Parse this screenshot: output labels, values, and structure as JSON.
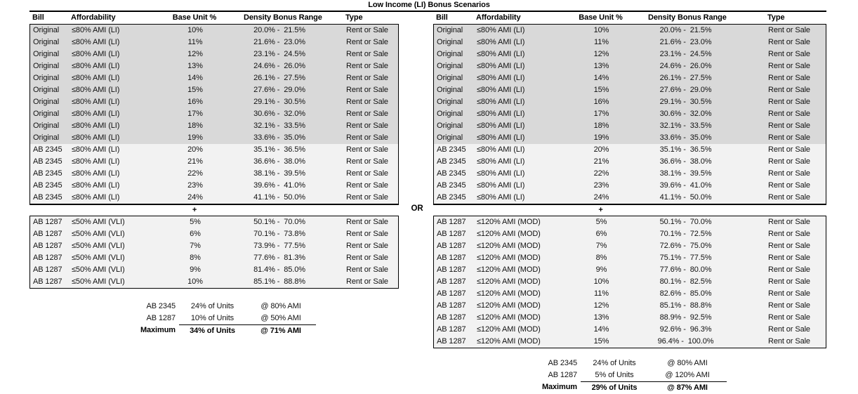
{
  "title": "Low Income (LI) Bonus Scenarios",
  "separators": {
    "plus": "+",
    "or": "OR"
  },
  "colors": {
    "original_row_bg": "#d9d9d9",
    "bill_row_bg": "#f2f2f2",
    "border": "#000000"
  },
  "columns": [
    {
      "key": "bill",
      "label": "Bill"
    },
    {
      "key": "aff",
      "label": "Affordability"
    },
    {
      "key": "base",
      "label": "Base Unit %"
    },
    {
      "key": "range",
      "label": "Density Bonus Range"
    },
    {
      "key": "type",
      "label": "Type"
    }
  ],
  "base_rows": [
    {
      "group": "original",
      "bill": "Original",
      "aff": "≤80% AMI (LI)",
      "base": "10%",
      "range": "20.0% -  21.5%",
      "type": "Rent or Sale"
    },
    {
      "group": "original",
      "bill": "Original",
      "aff": "≤80% AMI (LI)",
      "base": "11%",
      "range": "21.6% -  23.0%",
      "type": "Rent or Sale"
    },
    {
      "group": "original",
      "bill": "Original",
      "aff": "≤80% AMI (LI)",
      "base": "12%",
      "range": "23.1% -  24.5%",
      "type": "Rent or Sale"
    },
    {
      "group": "original",
      "bill": "Original",
      "aff": "≤80% AMI (LI)",
      "base": "13%",
      "range": "24.6% -  26.0%",
      "type": "Rent or Sale"
    },
    {
      "group": "original",
      "bill": "Original",
      "aff": "≤80% AMI (LI)",
      "base": "14%",
      "range": "26.1% -  27.5%",
      "type": "Rent or Sale"
    },
    {
      "group": "original",
      "bill": "Original",
      "aff": "≤80% AMI (LI)",
      "base": "15%",
      "range": "27.6% -  29.0%",
      "type": "Rent or Sale"
    },
    {
      "group": "original",
      "bill": "Original",
      "aff": "≤80% AMI (LI)",
      "base": "16%",
      "range": "29.1% -  30.5%",
      "type": "Rent or Sale"
    },
    {
      "group": "original",
      "bill": "Original",
      "aff": "≤80% AMI (LI)",
      "base": "17%",
      "range": "30.6% -  32.0%",
      "type": "Rent or Sale"
    },
    {
      "group": "original",
      "bill": "Original",
      "aff": "≤80% AMI (LI)",
      "base": "18%",
      "range": "32.1% -  33.5%",
      "type": "Rent or Sale"
    },
    {
      "group": "original",
      "bill": "Original",
      "aff": "≤80% AMI (LI)",
      "base": "19%",
      "range": "33.6% -  35.0%",
      "type": "Rent or Sale"
    },
    {
      "group": "bill",
      "bill": "AB 2345",
      "aff": "≤80% AMI (LI)",
      "base": "20%",
      "range": "35.1% -  36.5%",
      "type": "Rent or Sale"
    },
    {
      "group": "bill",
      "bill": "AB 2345",
      "aff": "≤80% AMI (LI)",
      "base": "21%",
      "range": "36.6% -  38.0%",
      "type": "Rent or Sale"
    },
    {
      "group": "bill",
      "bill": "AB 2345",
      "aff": "≤80% AMI (LI)",
      "base": "22%",
      "range": "38.1% -  39.5%",
      "type": "Rent or Sale"
    },
    {
      "group": "bill",
      "bill": "AB 2345",
      "aff": "≤80% AMI (LI)",
      "base": "23%",
      "range": "39.6% -  41.0%",
      "type": "Rent or Sale"
    },
    {
      "group": "bill",
      "bill": "AB 2345",
      "aff": "≤80% AMI (LI)",
      "base": "24%",
      "range": "41.1% -  50.0%",
      "type": "Rent or Sale"
    }
  ],
  "panels": {
    "left": {
      "sub_rows": [
        {
          "group": "bill",
          "bill": "AB 1287",
          "aff": "≤50% AMI (VLI)",
          "base": "5%",
          "range": "50.1% -  70.0%",
          "type": "Rent or Sale"
        },
        {
          "group": "bill",
          "bill": "AB 1287",
          "aff": "≤50% AMI (VLI)",
          "base": "6%",
          "range": "70.1% -  73.8%",
          "type": "Rent or Sale"
        },
        {
          "group": "bill",
          "bill": "AB 1287",
          "aff": "≤50% AMI (VLI)",
          "base": "7%",
          "range": "73.9% -  77.5%",
          "type": "Rent or Sale"
        },
        {
          "group": "bill",
          "bill": "AB 1287",
          "aff": "≤50% AMI (VLI)",
          "base": "8%",
          "range": "77.6% -  81.3%",
          "type": "Rent or Sale"
        },
        {
          "group": "bill",
          "bill": "AB 1287",
          "aff": "≤50% AMI (VLI)",
          "base": "9%",
          "range": "81.4% -  85.0%",
          "type": "Rent or Sale"
        },
        {
          "group": "bill",
          "bill": "AB 1287",
          "aff": "≤50% AMI (VLI)",
          "base": "10%",
          "range": "85.1% -  88.8%",
          "type": "Rent or Sale"
        }
      ],
      "summary": [
        {
          "label": "AB 2345",
          "units": "24% of Units",
          "ami": "@ 80% AMI",
          "bold": false
        },
        {
          "label": "AB 1287",
          "units": "10% of Units",
          "ami": "@ 50% AMI",
          "bold": false
        },
        {
          "label": "Maximum",
          "units": "34% of Units",
          "ami": "@ 71% AMI",
          "bold": true
        }
      ]
    },
    "right": {
      "sub_rows": [
        {
          "group": "bill",
          "bill": "AB 1287",
          "aff": "≤120% AMI (MOD)",
          "base": "5%",
          "range": "50.1% -  70.0%",
          "type": "Rent or Sale"
        },
        {
          "group": "bill",
          "bill": "AB 1287",
          "aff": "≤120% AMI (MOD)",
          "base": "6%",
          "range": "70.1% -  72.5%",
          "type": "Rent or Sale"
        },
        {
          "group": "bill",
          "bill": "AB 1287",
          "aff": "≤120% AMI (MOD)",
          "base": "7%",
          "range": "72.6% -  75.0%",
          "type": "Rent or Sale"
        },
        {
          "group": "bill",
          "bill": "AB 1287",
          "aff": "≤120% AMI (MOD)",
          "base": "8%",
          "range": "75.1% -  77.5%",
          "type": "Rent or Sale"
        },
        {
          "group": "bill",
          "bill": "AB 1287",
          "aff": "≤120% AMI (MOD)",
          "base": "9%",
          "range": "77.6% -  80.0%",
          "type": "Rent or Sale"
        },
        {
          "group": "bill",
          "bill": "AB 1287",
          "aff": "≤120% AMI (MOD)",
          "base": "10%",
          "range": "80.1% -  82.5%",
          "type": "Rent or Sale"
        },
        {
          "group": "bill",
          "bill": "AB 1287",
          "aff": "≤120% AMI (MOD)",
          "base": "11%",
          "range": "82.6% -  85.0%",
          "type": "Rent or Sale"
        },
        {
          "group": "bill",
          "bill": "AB 1287",
          "aff": "≤120% AMI (MOD)",
          "base": "12%",
          "range": "85.1% -  88.8%",
          "type": "Rent or Sale"
        },
        {
          "group": "bill",
          "bill": "AB 1287",
          "aff": "≤120% AMI (MOD)",
          "base": "13%",
          "range": "88.9% -  92.5%",
          "type": "Rent or Sale"
        },
        {
          "group": "bill",
          "bill": "AB 1287",
          "aff": "≤120% AMI (MOD)",
          "base": "14%",
          "range": "92.6% -  96.3%",
          "type": "Rent or Sale"
        },
        {
          "group": "bill",
          "bill": "AB 1287",
          "aff": "≤120% AMI (MOD)",
          "base": "15%",
          "range": "96.4% -  100.0%",
          "type": "Rent or Sale"
        }
      ],
      "summary": [
        {
          "label": "AB 2345",
          "units": "24% of Units",
          "ami": "@ 80% AMI",
          "bold": false
        },
        {
          "label": "AB 1287",
          "units": "5% of Units",
          "ami": "@ 120% AMI",
          "bold": false
        },
        {
          "label": "Maximum",
          "units": "29% of Units",
          "ami": "@ 87% AMI",
          "bold": true
        }
      ]
    }
  }
}
